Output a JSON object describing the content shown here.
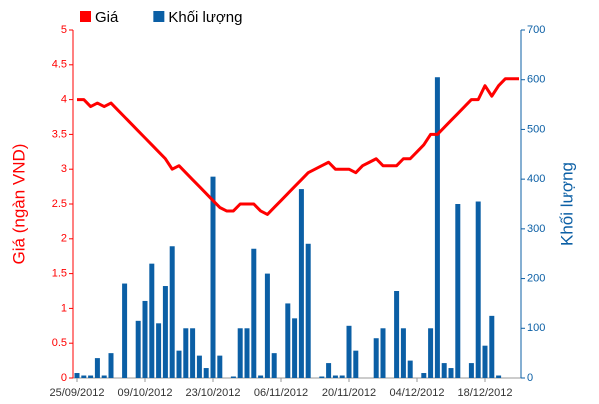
{
  "chart_data": {
    "type": "combo",
    "categories": [
      "25/09/2012",
      null,
      null,
      null,
      null,
      null,
      null,
      null,
      null,
      null,
      "09/10/2012",
      null,
      null,
      null,
      null,
      null,
      null,
      null,
      null,
      null,
      "23/10/2012",
      null,
      null,
      null,
      null,
      null,
      null,
      null,
      null,
      null,
      "06/11/2012",
      null,
      null,
      null,
      null,
      null,
      null,
      null,
      null,
      null,
      "20/11/2012",
      null,
      null,
      null,
      null,
      null,
      null,
      null,
      null,
      null,
      "04/12/2012",
      null,
      null,
      null,
      null,
      null,
      null,
      null,
      null,
      null,
      "18/12/2012",
      null,
      null,
      null,
      null,
      null
    ],
    "series": [
      {
        "name": "Giá",
        "type": "line",
        "color": "#ff0000",
        "axis": "y",
        "values": [
          4.0,
          4.0,
          3.9,
          3.95,
          3.9,
          3.95,
          3.85,
          3.75,
          3.65,
          3.55,
          3.45,
          3.35,
          3.25,
          3.15,
          3.0,
          3.05,
          2.95,
          2.85,
          2.75,
          2.65,
          2.55,
          2.45,
          2.4,
          2.4,
          2.5,
          2.5,
          2.5,
          2.4,
          2.35,
          2.45,
          2.55,
          2.65,
          2.75,
          2.85,
          2.95,
          3.0,
          3.05,
          3.1,
          3.0,
          3.0,
          3.0,
          2.95,
          3.05,
          3.1,
          3.15,
          3.05,
          3.05,
          3.05,
          3.15,
          3.15,
          3.25,
          3.35,
          3.5,
          3.5,
          3.6,
          3.7,
          3.8,
          3.9,
          4.0,
          4.0,
          4.2,
          4.05,
          4.2,
          4.3,
          4.3,
          4.3
        ]
      },
      {
        "name": "Khối lượng",
        "type": "bar",
        "color": "#0b5fa5",
        "axis": "y2",
        "values": [
          10,
          5,
          5,
          40,
          5,
          50,
          0,
          190,
          0,
          115,
          155,
          230,
          110,
          185,
          265,
          55,
          100,
          100,
          45,
          20,
          405,
          45,
          0,
          3,
          100,
          100,
          260,
          5,
          210,
          50,
          0,
          150,
          120,
          380,
          270,
          0,
          3,
          30,
          5,
          5,
          105,
          55,
          0,
          0,
          80,
          100,
          0,
          175,
          100,
          35,
          0,
          10,
          100,
          605,
          30,
          20,
          350,
          0,
          30,
          355,
          65,
          125,
          5,
          0,
          0,
          0
        ]
      }
    ],
    "y_label": "Giá (ngàn VND)",
    "y2_label": "Khối lượng",
    "ylim": [
      0,
      5
    ],
    "yticks": [
      0,
      0.5,
      1,
      1.5,
      2,
      2.5,
      3,
      3.5,
      4,
      4.5,
      5
    ],
    "y2lim": [
      0,
      700
    ],
    "y2ticks": [
      0,
      100,
      200,
      300,
      400,
      500,
      600,
      700
    ],
    "grid": false,
    "legend": "top-left"
  }
}
